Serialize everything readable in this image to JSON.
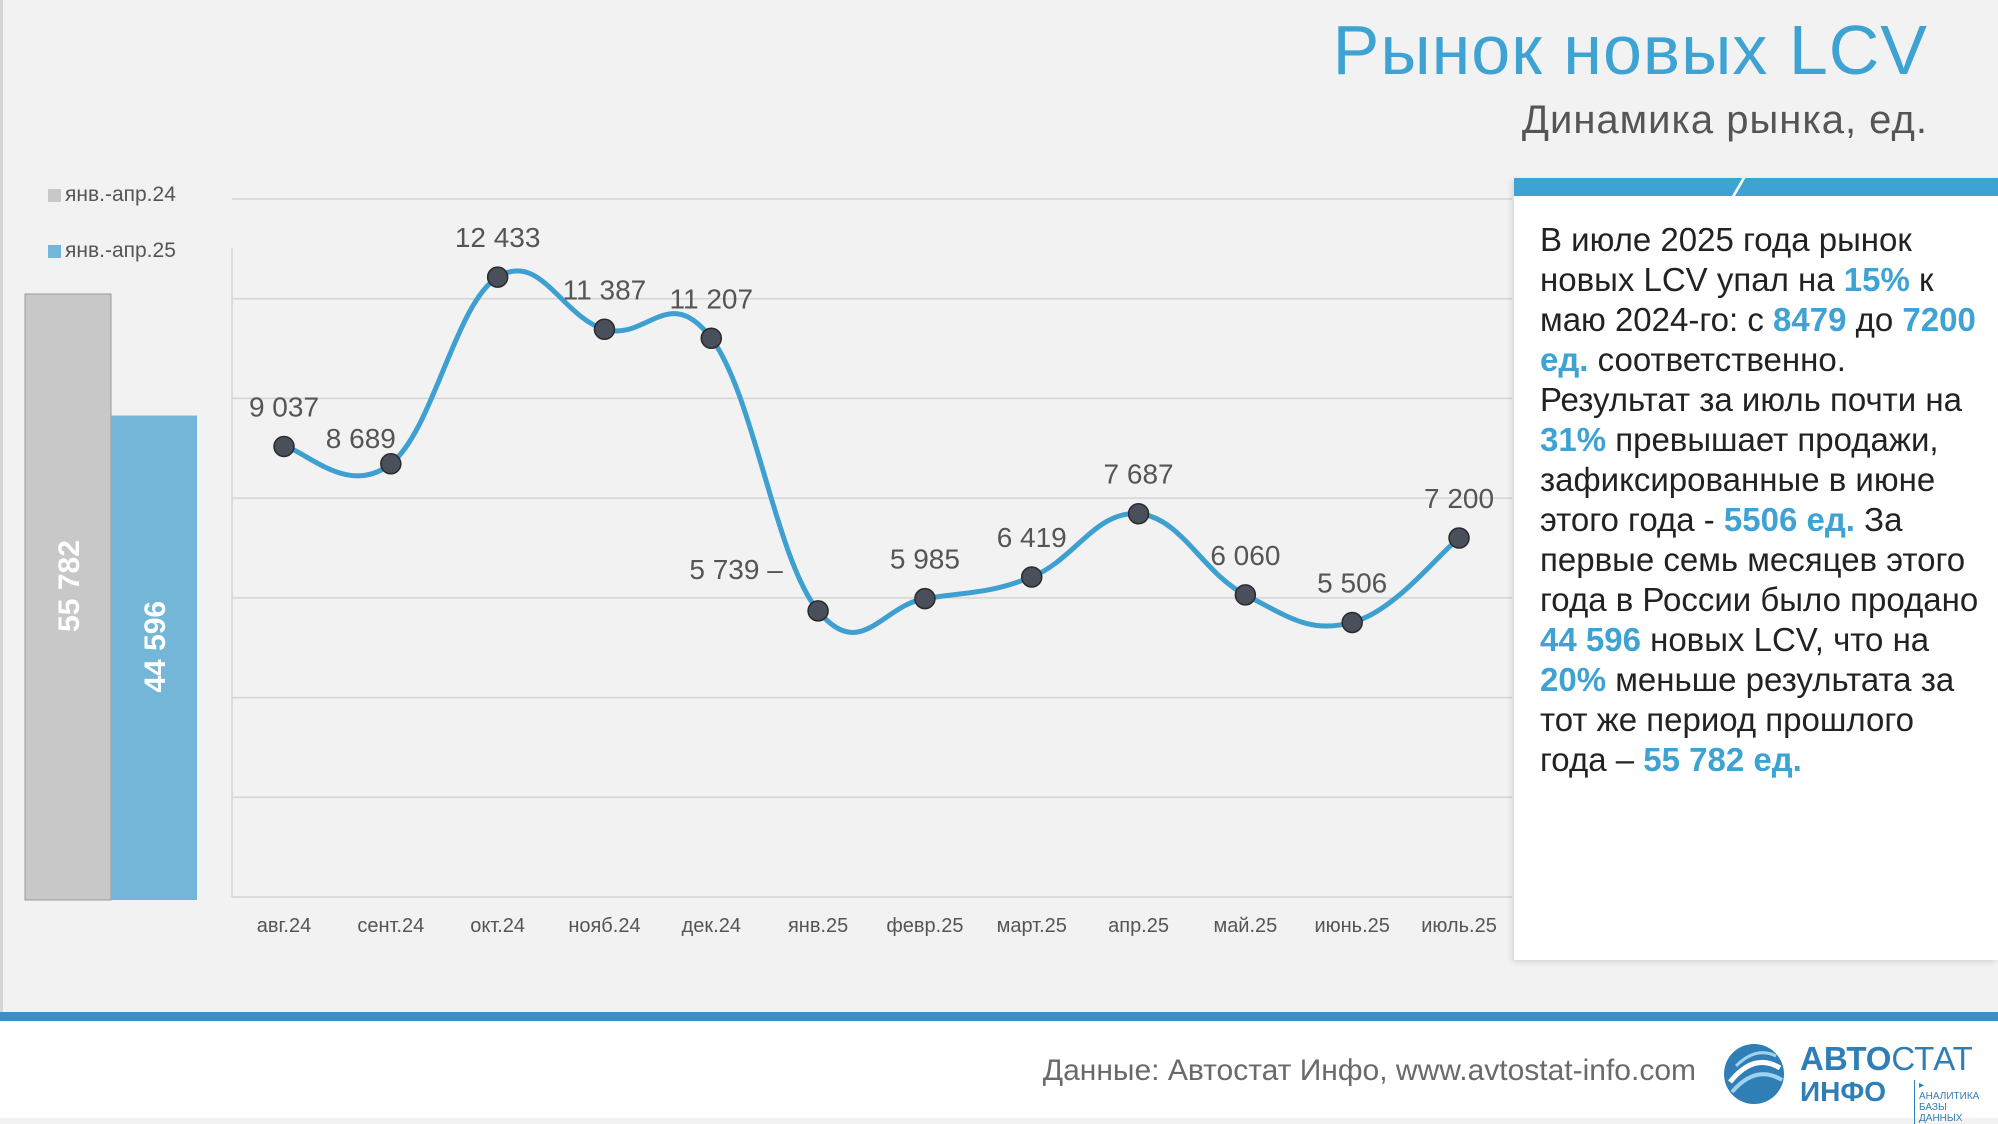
{
  "title": "Рынок новых LCV",
  "subtitle": "Динамика рынка, ед.",
  "legend": [
    {
      "label": "янв.-апр.24",
      "color": "#c8c8c8"
    },
    {
      "label": "янв.-апр.25",
      "color": "#74b6d8"
    }
  ],
  "info": {
    "parts": [
      {
        "t": "В июле 2025 года рынок новых LCV упал на "
      },
      {
        "t": "15%",
        "b": true
      },
      {
        "t": " к маю 2024-го: с "
      },
      {
        "t": "8479",
        "b": true
      },
      {
        "t": " до "
      },
      {
        "t": "7200 ед.",
        "b": true
      },
      {
        "t": " соответственно. Результат за июль почти на "
      },
      {
        "t": "31%",
        "b": true
      },
      {
        "t": " превышает продажи, зафиксированные в июне этого года  - "
      },
      {
        "t": "5506 ед.",
        "b": true
      },
      {
        "t": " За первые семь месяцев этого года в России было продано "
      },
      {
        "t": "44 596",
        "b": true
      },
      {
        "t": " новых LCV, что на "
      },
      {
        "t": "20%",
        "b": true
      },
      {
        "t": " меньше результата за тот же период прошлого года – "
      },
      {
        "t": "55 782 ед.",
        "b": true
      }
    ]
  },
  "footer": {
    "source": "Данные: Автостат Инфо, www.avtostat-info.com",
    "logo_top_bold": "АВТО",
    "logo_top_regular": "СТАТ",
    "logo_bottom": "ИНФО",
    "logo_tag_line1": "▸ АНАЛИТИКА",
    "logo_tag_line2": "БАЗЫ ДАННЫХ"
  },
  "chart_data": [
    {
      "type": "bar",
      "categories": [
        "янв.-апр.24",
        "янв.-апр.25"
      ],
      "values": [
        55782,
        44596
      ],
      "value_labels": [
        "55 782",
        "44 596"
      ],
      "colors": [
        "#c8c8c8",
        "#74b6d8"
      ]
    },
    {
      "type": "line",
      "categories": [
        "авг.24",
        "сент.24",
        "окт.24",
        "нояб.24",
        "дек.24",
        "янв.25",
        "февр.25",
        "март.25",
        "апр.25",
        "май.25",
        "июнь.25",
        "июль.25"
      ],
      "values": [
        9037,
        8689,
        12433,
        11387,
        11207,
        5739,
        5985,
        6419,
        7687,
        6060,
        5506,
        7200
      ],
      "value_labels": [
        "9 037",
        "8 689",
        "12 433",
        "11 387",
        "11 207",
        "5 739",
        "5 985",
        "6 419",
        "7 687",
        "6 060",
        "5 506",
        "7 200"
      ],
      "line_color": "#3e9fd1",
      "marker_color": "#4a4f5c",
      "grid": true
    }
  ]
}
